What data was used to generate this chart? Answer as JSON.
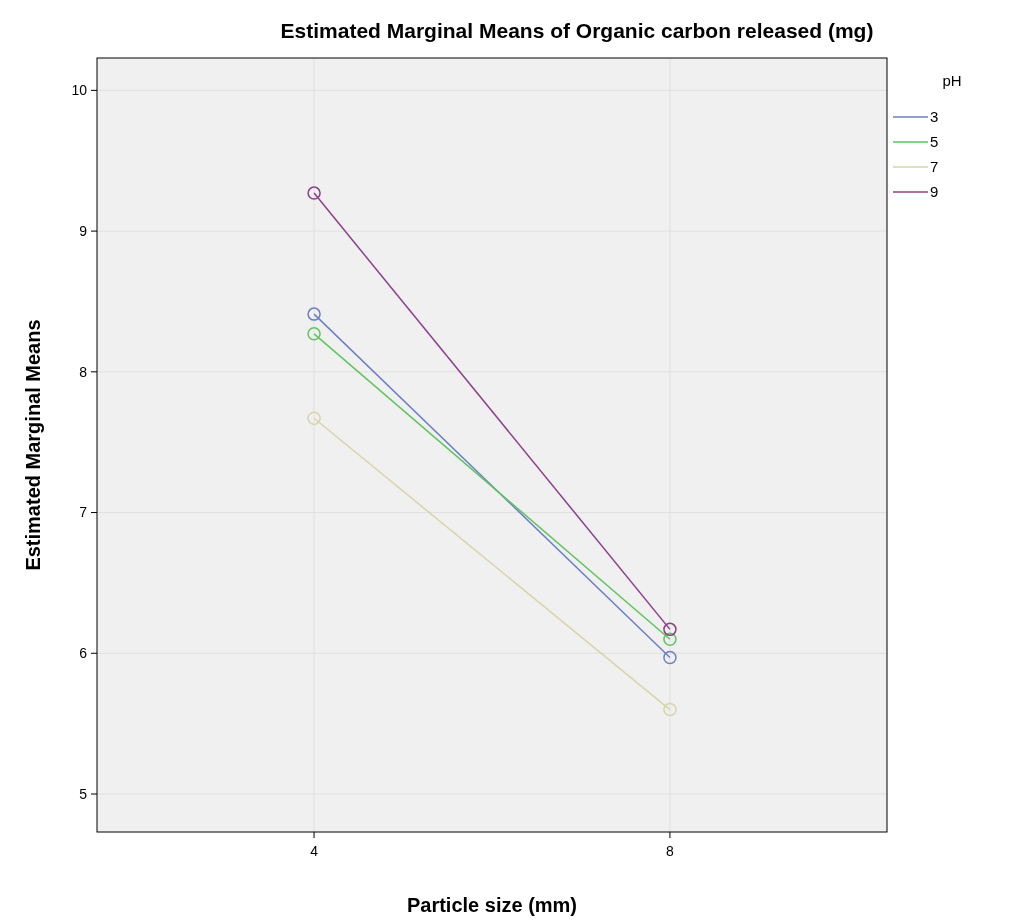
{
  "chart_data": {
    "type": "line",
    "title": "Estimated Marginal Means of Organic carbon released (mg)",
    "xlabel": "Particle size (mm)",
    "ylabel": "Estimated Marginal Means",
    "legend_title": "pH",
    "categories": [
      "4",
      "8"
    ],
    "series": [
      {
        "name": "3",
        "color": "#6b7fc4",
        "values": [
          8.41,
          5.97
        ]
      },
      {
        "name": "5",
        "color": "#5ec45e",
        "values": [
          8.27,
          6.1
        ]
      },
      {
        "name": "7",
        "color": "#d8d4a8",
        "values": [
          7.67,
          5.6
        ]
      },
      {
        "name": "9",
        "color": "#8c3f8c",
        "values": [
          9.27,
          6.17
        ]
      }
    ],
    "ylim": [
      4.73,
      10.23
    ],
    "yticks": [
      5,
      6,
      7,
      8,
      9,
      10
    ],
    "grid": true,
    "legend": "right",
    "marker": "circle"
  }
}
